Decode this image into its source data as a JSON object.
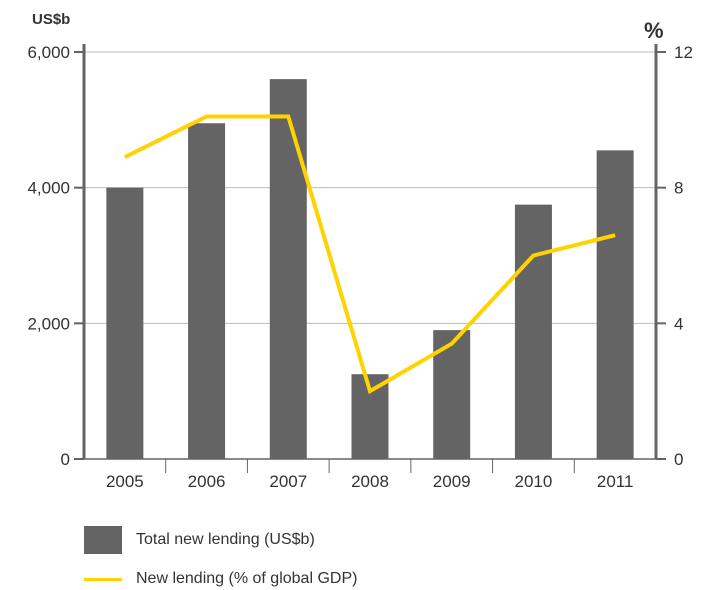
{
  "chart_data": {
    "type": "bar",
    "categories": [
      "2005",
      "2006",
      "2007",
      "2008",
      "2009",
      "2010",
      "2011"
    ],
    "series": [
      {
        "name": "Total new lending (US$b)",
        "type": "bar",
        "axis": "left",
        "values": [
          4000,
          4950,
          5600,
          1250,
          1900,
          3750,
          4550
        ]
      },
      {
        "name": "New lending (% of global GDP)",
        "type": "line",
        "axis": "right",
        "values": [
          8.9,
          10.1,
          10.1,
          2.0,
          3.4,
          6.0,
          6.6
        ]
      }
    ],
    "left_axis": {
      "unit": "US$b",
      "ylim": [
        0,
        6000
      ],
      "ticks": [
        0,
        2000,
        4000,
        6000
      ],
      "tick_labels": [
        "0",
        "2,000",
        "4,000",
        "6,000"
      ]
    },
    "right_axis": {
      "unit": "%",
      "ylim": [
        0,
        12
      ],
      "ticks": [
        0,
        4,
        8,
        12
      ],
      "tick_labels": [
        "0",
        "4",
        "8",
        "12"
      ]
    },
    "grid": true,
    "legend_position": "bottom-left",
    "colors": {
      "bar": "#646464",
      "line": "#ffd200",
      "axis": "#646464",
      "grid": "#bdbdbd"
    }
  },
  "legend": {
    "bar_label": "Total new lending (US$b)",
    "line_label": "New lending (% of global GDP)"
  }
}
